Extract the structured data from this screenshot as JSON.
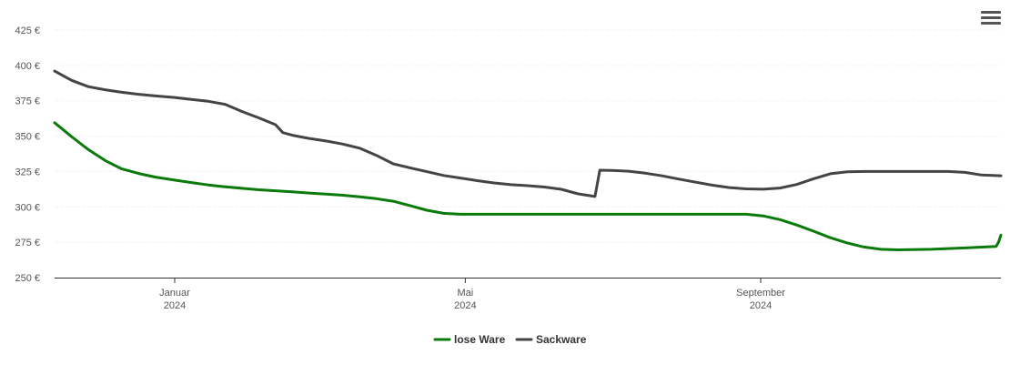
{
  "menu": {
    "icon": "hamburger-menu-icon"
  },
  "chart_data": {
    "type": "line",
    "title": "",
    "xlabel": "",
    "ylabel": "",
    "ylim": [
      250,
      425
    ],
    "yticks": [
      250,
      275,
      300,
      325,
      350,
      375,
      400,
      425
    ],
    "ytick_labels": [
      "250 €",
      "275 €",
      "300 €",
      "325 €",
      "350 €",
      "375 €",
      "400 €",
      "425 €"
    ],
    "xlim": [
      "2023-11-12",
      "2024-12-10"
    ],
    "xticks": [
      {
        "date": "2024-01-01",
        "month": "Januar",
        "year": "2024"
      },
      {
        "date": "2024-05-01",
        "month": "Mai",
        "year": "2024"
      },
      {
        "date": "2024-09-01",
        "month": "September",
        "year": "2024"
      }
    ],
    "grid": true,
    "legend_position": "bottom",
    "series": [
      {
        "name": "lose Ware",
        "color": "#0a7a0a",
        "points": [
          [
            "2023-11-12",
            359.5
          ],
          [
            "2023-11-19",
            349.7
          ],
          [
            "2023-11-26",
            340.5
          ],
          [
            "2023-12-03",
            332.8
          ],
          [
            "2023-12-10",
            326.8
          ],
          [
            "2023-12-17",
            323.6
          ],
          [
            "2023-12-24",
            321.0
          ],
          [
            "2024-01-01",
            318.9
          ],
          [
            "2024-01-08",
            317.2
          ],
          [
            "2024-01-15",
            315.5
          ],
          [
            "2024-01-22",
            314.2
          ],
          [
            "2024-01-29",
            313.1
          ],
          [
            "2024-02-05",
            312.1
          ],
          [
            "2024-02-12",
            311.4
          ],
          [
            "2024-02-19",
            310.6
          ],
          [
            "2024-02-26",
            309.8
          ],
          [
            "2024-03-04",
            309.0
          ],
          [
            "2024-03-11",
            308.2
          ],
          [
            "2024-03-18",
            307.1
          ],
          [
            "2024-03-25",
            305.8
          ],
          [
            "2024-04-01",
            304.0
          ],
          [
            "2024-04-08",
            300.9
          ],
          [
            "2024-04-15",
            297.6
          ],
          [
            "2024-04-22",
            295.4
          ],
          [
            "2024-04-29",
            294.8
          ],
          [
            "2024-05-15",
            294.8
          ],
          [
            "2024-06-01",
            294.8
          ],
          [
            "2024-07-01",
            294.8
          ],
          [
            "2024-08-01",
            294.8
          ],
          [
            "2024-08-26",
            294.8
          ],
          [
            "2024-09-02",
            293.6
          ],
          [
            "2024-09-09",
            291.0
          ],
          [
            "2024-09-16",
            287.2
          ],
          [
            "2024-09-23",
            282.8
          ],
          [
            "2024-09-30",
            278.2
          ],
          [
            "2024-10-07",
            274.5
          ],
          [
            "2024-10-14",
            271.6
          ],
          [
            "2024-10-21",
            270.0
          ],
          [
            "2024-10-28",
            269.6
          ],
          [
            "2024-11-11",
            270.0
          ],
          [
            "2024-11-25",
            271.0
          ],
          [
            "2024-12-08",
            272.0
          ],
          [
            "2024-12-09",
            275.0
          ],
          [
            "2024-12-10",
            280.0
          ]
        ]
      },
      {
        "name": "Sackware",
        "color": "#444444",
        "points": [
          [
            "2023-11-12",
            396.0
          ],
          [
            "2023-11-19",
            389.5
          ],
          [
            "2023-11-26",
            385.0
          ],
          [
            "2023-12-03",
            382.8
          ],
          [
            "2023-12-10",
            381.0
          ],
          [
            "2023-12-17",
            379.6
          ],
          [
            "2023-12-24",
            378.4
          ],
          [
            "2024-01-01",
            377.3
          ],
          [
            "2024-01-08",
            376.0
          ],
          [
            "2024-01-15",
            374.6
          ],
          [
            "2024-01-22",
            372.5
          ],
          [
            "2024-01-29",
            367.4
          ],
          [
            "2024-02-05",
            362.9
          ],
          [
            "2024-02-12",
            358.1
          ],
          [
            "2024-02-15",
            352.5
          ],
          [
            "2024-02-19",
            350.6
          ],
          [
            "2024-02-26",
            348.4
          ],
          [
            "2024-03-04",
            346.6
          ],
          [
            "2024-03-11",
            344.4
          ],
          [
            "2024-03-18",
            341.5
          ],
          [
            "2024-03-25",
            336.4
          ],
          [
            "2024-04-01",
            330.4
          ],
          [
            "2024-04-08",
            327.6
          ],
          [
            "2024-04-15",
            324.9
          ],
          [
            "2024-04-22",
            322.2
          ],
          [
            "2024-04-29",
            320.4
          ],
          [
            "2024-05-06",
            318.5
          ],
          [
            "2024-05-13",
            316.9
          ],
          [
            "2024-05-20",
            315.7
          ],
          [
            "2024-05-27",
            315.0
          ],
          [
            "2024-06-03",
            314.0
          ],
          [
            "2024-06-10",
            312.4
          ],
          [
            "2024-06-17",
            309.2
          ],
          [
            "2024-06-24",
            307.3
          ],
          [
            "2024-06-26",
            325.9
          ],
          [
            "2024-07-01",
            325.8
          ],
          [
            "2024-07-08",
            325.2
          ],
          [
            "2024-07-15",
            323.8
          ],
          [
            "2024-07-22",
            321.9
          ],
          [
            "2024-07-29",
            319.6
          ],
          [
            "2024-08-05",
            317.4
          ],
          [
            "2024-08-12",
            315.3
          ],
          [
            "2024-08-19",
            313.6
          ],
          [
            "2024-08-26",
            312.7
          ],
          [
            "2024-09-02",
            312.5
          ],
          [
            "2024-09-09",
            313.3
          ],
          [
            "2024-09-16",
            315.8
          ],
          [
            "2024-09-23",
            319.9
          ],
          [
            "2024-09-30",
            323.4
          ],
          [
            "2024-10-07",
            324.8
          ],
          [
            "2024-10-14",
            325.0
          ],
          [
            "2024-11-04",
            325.0
          ],
          [
            "2024-11-18",
            325.0
          ],
          [
            "2024-11-25",
            324.4
          ],
          [
            "2024-12-02",
            322.5
          ],
          [
            "2024-12-10",
            322.0
          ]
        ]
      }
    ]
  }
}
